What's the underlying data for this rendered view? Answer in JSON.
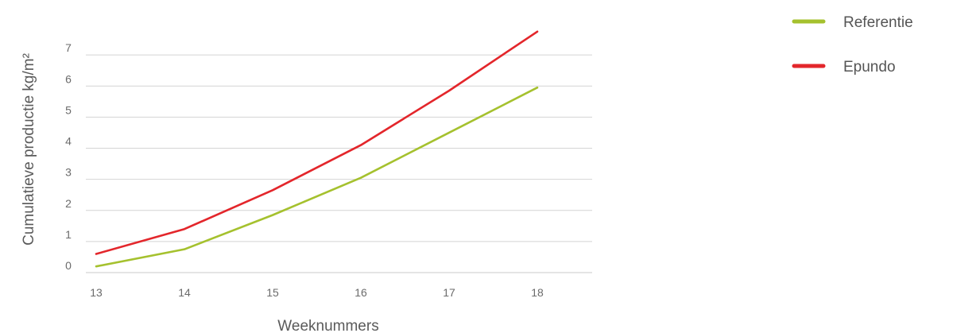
{
  "chart_data": {
    "type": "line",
    "x": [
      13,
      14,
      15,
      16,
      17,
      18
    ],
    "series": [
      {
        "name": "Referentie",
        "color": "#a5c12e",
        "values": [
          0.2,
          0.75,
          1.85,
          3.05,
          4.5,
          5.95
        ]
      },
      {
        "name": "Epundo",
        "color": "#e3262b",
        "values": [
          0.6,
          1.4,
          2.65,
          4.1,
          5.85,
          7.75
        ]
      }
    ],
    "title": "",
    "xlabel": "Weeknummers",
    "ylabel": "Cumulatieve productie kg/m²",
    "xticks": [
      "13",
      "14",
      "15",
      "16",
      "17",
      "18"
    ],
    "yticks": [
      "0",
      "1",
      "2",
      "3",
      "4",
      "5",
      "6",
      "7"
    ],
    "ylim": [
      0,
      8
    ],
    "grid": "horizontal",
    "legend": "top-right"
  }
}
